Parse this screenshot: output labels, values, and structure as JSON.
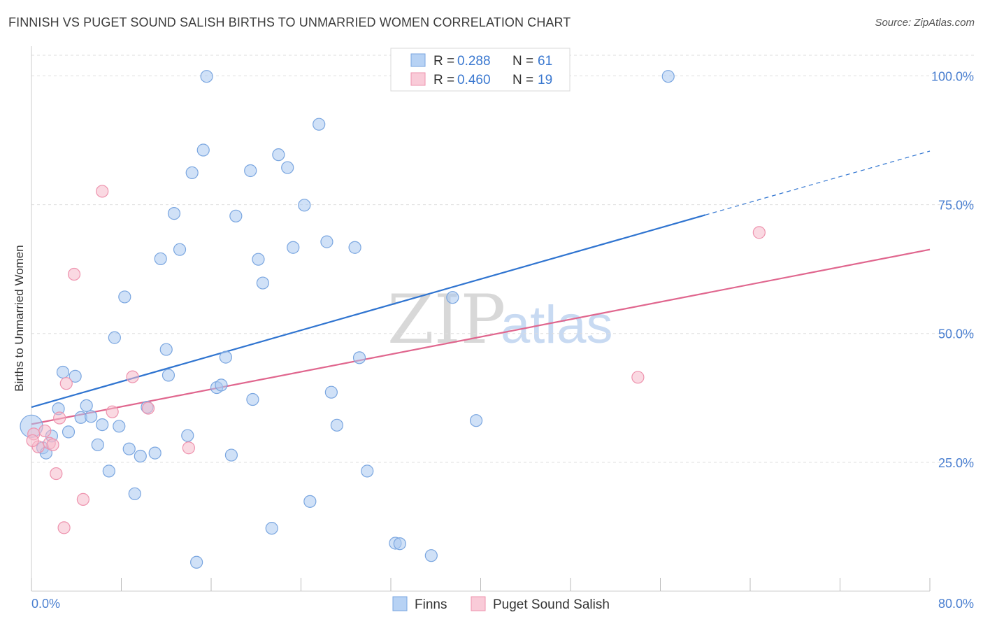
{
  "header": {
    "title": "FINNISH VS PUGET SOUND SALISH BIRTHS TO UNMARRIED WOMEN CORRELATION CHART",
    "source": "Source: ZipAtlas.com"
  },
  "watermark": {
    "zip": "ZIP",
    "atlas": "atlas"
  },
  "legend": {
    "rows": [
      {
        "r_label": "R =",
        "r_value": "0.288",
        "n_label": "N =",
        "n_value": "61"
      },
      {
        "r_label": "R =",
        "r_value": "0.460",
        "n_label": "N =",
        "n_value": "19"
      }
    ]
  },
  "bottom_legend": {
    "finns": "Finns",
    "salish": "Puget Sound Salish"
  },
  "colors": {
    "finns_fill": "#a9c8f0",
    "finns_stroke": "#7aa6e0",
    "finns_line": "#2f74d0",
    "salish_fill": "#f6b9cb",
    "salish_stroke": "#ee93ae",
    "salish_line": "#e0668e",
    "tick_label": "#4a7fd0",
    "grid": "#dddddd"
  },
  "chart_data": {
    "type": "scatter",
    "title": "FINNISH VS PUGET SOUND SALISH BIRTHS TO UNMARRIED WOMEN CORRELATION CHART",
    "xlabel": "",
    "ylabel": "Births to Unmarried Women",
    "xlim": [
      0,
      80
    ],
    "ylim": [
      0,
      104
    ],
    "x_tick_labels": [
      "0.0%",
      "80.0%"
    ],
    "y_ticks": [
      25,
      50,
      75,
      100
    ],
    "y_tick_labels": [
      "25.0%",
      "50.0%",
      "75.0%",
      "100.0%"
    ],
    "grid": true,
    "legend_position": "top-center",
    "series": [
      {
        "name": "Finns",
        "r": 0.288,
        "n": 61,
        "trend": {
          "x": [
            0,
            60
          ],
          "y": [
            35.7,
            73.0
          ],
          "dashed_to": [
            80,
            85.4
          ]
        },
        "points": [
          {
            "x": 0.0,
            "y": 32.0
          },
          {
            "x": 1.0,
            "y": 27.8
          },
          {
            "x": 1.3,
            "y": 26.8
          },
          {
            "x": 1.8,
            "y": 30.1
          },
          {
            "x": 2.4,
            "y": 35.4
          },
          {
            "x": 2.8,
            "y": 42.5
          },
          {
            "x": 3.3,
            "y": 30.9
          },
          {
            "x": 3.9,
            "y": 41.7
          },
          {
            "x": 4.4,
            "y": 33.7
          },
          {
            "x": 4.9,
            "y": 36.0
          },
          {
            "x": 5.3,
            "y": 33.9
          },
          {
            "x": 5.9,
            "y": 28.4
          },
          {
            "x": 6.3,
            "y": 32.3
          },
          {
            "x": 6.9,
            "y": 23.3
          },
          {
            "x": 7.4,
            "y": 49.2
          },
          {
            "x": 7.8,
            "y": 32.0
          },
          {
            "x": 8.3,
            "y": 57.1
          },
          {
            "x": 8.7,
            "y": 27.6
          },
          {
            "x": 9.2,
            "y": 18.9
          },
          {
            "x": 9.7,
            "y": 26.2
          },
          {
            "x": 10.3,
            "y": 35.7
          },
          {
            "x": 11.0,
            "y": 26.8
          },
          {
            "x": 11.5,
            "y": 64.5
          },
          {
            "x": 12.0,
            "y": 46.9
          },
          {
            "x": 12.2,
            "y": 41.9
          },
          {
            "x": 12.7,
            "y": 73.3
          },
          {
            "x": 13.2,
            "y": 66.3
          },
          {
            "x": 13.9,
            "y": 30.2
          },
          {
            "x": 14.3,
            "y": 81.2
          },
          {
            "x": 14.7,
            "y": 5.6
          },
          {
            "x": 15.3,
            "y": 85.6
          },
          {
            "x": 15.6,
            "y": 99.9
          },
          {
            "x": 16.5,
            "y": 39.5
          },
          {
            "x": 16.9,
            "y": 40.0
          },
          {
            "x": 17.3,
            "y": 45.4
          },
          {
            "x": 17.8,
            "y": 26.4
          },
          {
            "x": 18.2,
            "y": 72.8
          },
          {
            "x": 19.5,
            "y": 81.6
          },
          {
            "x": 19.7,
            "y": 37.2
          },
          {
            "x": 20.2,
            "y": 64.4
          },
          {
            "x": 20.6,
            "y": 59.8
          },
          {
            "x": 21.4,
            "y": 12.2
          },
          {
            "x": 22.0,
            "y": 84.7
          },
          {
            "x": 22.8,
            "y": 82.2
          },
          {
            "x": 23.3,
            "y": 66.7
          },
          {
            "x": 24.3,
            "y": 74.9
          },
          {
            "x": 24.8,
            "y": 17.4
          },
          {
            "x": 25.6,
            "y": 90.6
          },
          {
            "x": 26.3,
            "y": 67.8
          },
          {
            "x": 26.7,
            "y": 38.6
          },
          {
            "x": 27.2,
            "y": 32.2
          },
          {
            "x": 28.8,
            "y": 66.7
          },
          {
            "x": 29.2,
            "y": 45.3
          },
          {
            "x": 29.9,
            "y": 23.3
          },
          {
            "x": 32.4,
            "y": 9.3
          },
          {
            "x": 32.8,
            "y": 9.2
          },
          {
            "x": 35.6,
            "y": 6.9
          },
          {
            "x": 37.2,
            "y": 99.9
          },
          {
            "x": 37.5,
            "y": 57.0
          },
          {
            "x": 39.6,
            "y": 33.1
          },
          {
            "x": 56.7,
            "y": 99.9
          }
        ]
      },
      {
        "name": "Puget Sound Salish",
        "r": 0.46,
        "n": 19,
        "trend": {
          "x": [
            0,
            80
          ],
          "y": [
            32.4,
            66.3
          ]
        },
        "points": [
          {
            "x": 0.2,
            "y": 30.5
          },
          {
            "x": 0.6,
            "y": 28.0
          },
          {
            "x": 1.2,
            "y": 31.1
          },
          {
            "x": 1.6,
            "y": 28.7
          },
          {
            "x": 1.9,
            "y": 28.4
          },
          {
            "x": 2.2,
            "y": 22.8
          },
          {
            "x": 2.5,
            "y": 33.6
          },
          {
            "x": 2.9,
            "y": 12.3
          },
          {
            "x": 3.1,
            "y": 40.3
          },
          {
            "x": 3.8,
            "y": 61.5
          },
          {
            "x": 4.6,
            "y": 17.8
          },
          {
            "x": 6.3,
            "y": 77.6
          },
          {
            "x": 7.2,
            "y": 34.8
          },
          {
            "x": 9.0,
            "y": 41.6
          },
          {
            "x": 10.4,
            "y": 35.5
          },
          {
            "x": 14.0,
            "y": 27.8
          },
          {
            "x": 54.0,
            "y": 41.5
          },
          {
            "x": 64.8,
            "y": 69.6
          },
          {
            "x": 0.1,
            "y": 29.2
          }
        ]
      }
    ]
  }
}
